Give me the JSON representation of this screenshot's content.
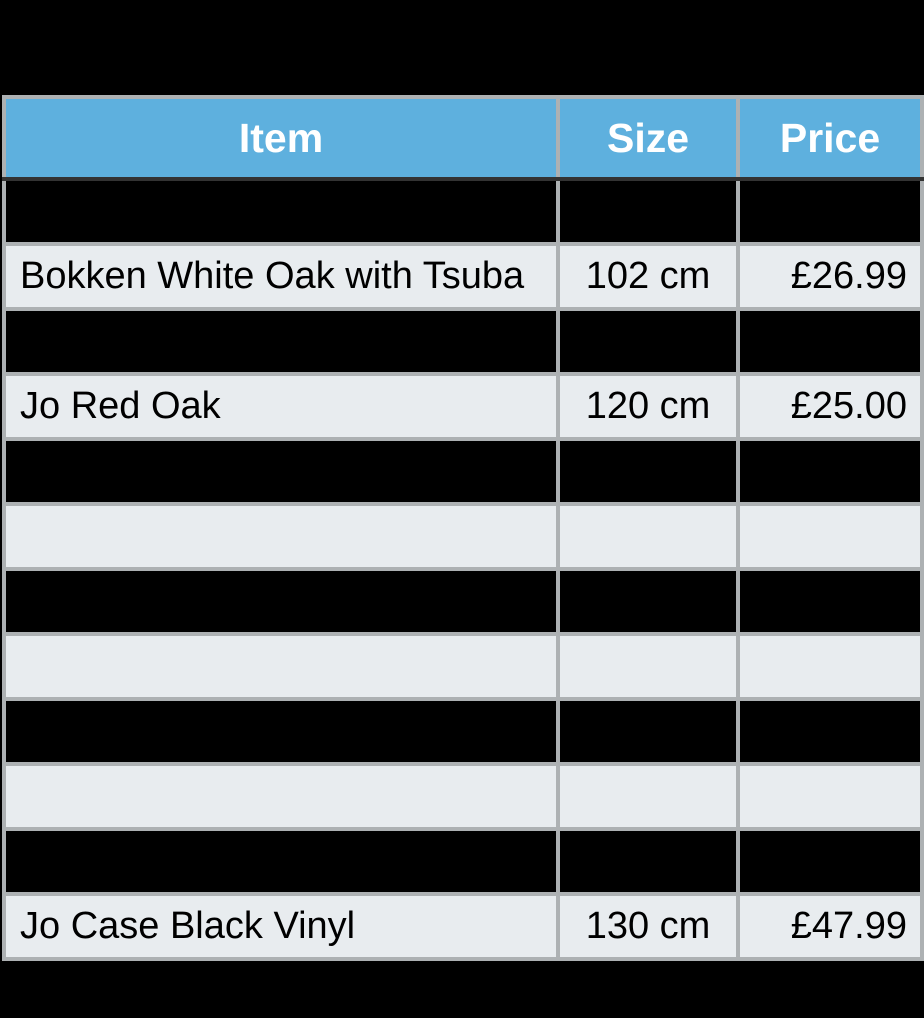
{
  "page": {
    "background": "#000000"
  },
  "table": {
    "headers": [
      {
        "id": "item",
        "label": "Item"
      },
      {
        "id": "size",
        "label": "Size"
      },
      {
        "id": "price",
        "label": "Price"
      }
    ],
    "rows": [
      {
        "type": "redacted",
        "item": "",
        "size": "",
        "price": ""
      },
      {
        "type": "data",
        "item": "Bokken White Oak with Tsuba",
        "size": "102 cm",
        "price": "£26.99"
      },
      {
        "type": "redacted",
        "item": "",
        "size": "",
        "price": ""
      },
      {
        "type": "data",
        "item": "Jo Red Oak",
        "size": "120 cm",
        "price": "£25.00"
      },
      {
        "type": "redacted",
        "item": "",
        "size": "",
        "price": ""
      },
      {
        "type": "empty",
        "item": "",
        "size": "",
        "price": ""
      },
      {
        "type": "redacted",
        "item": "",
        "size": "",
        "price": ""
      },
      {
        "type": "empty",
        "item": "",
        "size": "",
        "price": ""
      },
      {
        "type": "redacted",
        "item": "",
        "size": "",
        "price": ""
      },
      {
        "type": "empty",
        "item": "",
        "size": "",
        "price": ""
      },
      {
        "type": "redacted",
        "item": "",
        "size": "",
        "price": ""
      },
      {
        "type": "data",
        "item": "Jo Case Black Vinyl",
        "size": "130 cm",
        "price": "£47.99"
      }
    ],
    "colors": {
      "header_bg": "#5EB0DE",
      "header_text": "#FFFFFF",
      "header_bottom_border": "#333333",
      "grid_border": "#ADB1B3",
      "row_bg": "#E8ECEF",
      "redacted_bg": "#000000",
      "text": "#000000"
    }
  }
}
